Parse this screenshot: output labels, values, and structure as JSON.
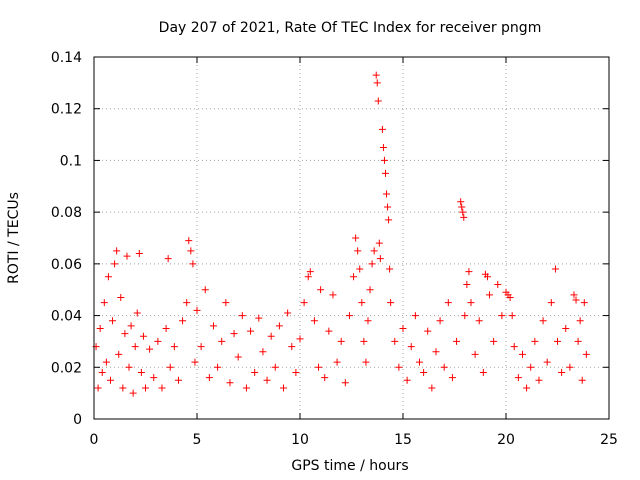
{
  "chart_data": {
    "type": "scatter",
    "title": "Day 207 of 2021, Rate Of TEC Index for receiver pngm",
    "xlabel": "GPS time / hours",
    "ylabel": "ROTI / TECUs",
    "xlim": [
      0,
      25
    ],
    "ylim": [
      0,
      0.14
    ],
    "xticks": [
      0,
      5,
      10,
      15,
      20,
      25
    ],
    "xtick_labels": [
      "0",
      "5",
      "10",
      "15",
      "20",
      "25"
    ],
    "yticks": [
      0,
      0.02,
      0.04,
      0.06,
      0.08,
      0.1,
      0.12,
      0.14
    ],
    "ytick_labels": [
      "0",
      "0.02",
      "0.04",
      "0.06",
      "0.08",
      "0.1",
      "0.12",
      "0.14"
    ],
    "grid": true,
    "marker": "plus",
    "color": "#ff0000",
    "series": [
      {
        "name": "ROTI",
        "points": [
          [
            0.1,
            0.028
          ],
          [
            0.2,
            0.012
          ],
          [
            0.3,
            0.035
          ],
          [
            0.4,
            0.018
          ],
          [
            0.5,
            0.045
          ],
          [
            0.6,
            0.022
          ],
          [
            0.7,
            0.055
          ],
          [
            0.8,
            0.015
          ],
          [
            0.9,
            0.038
          ],
          [
            1.0,
            0.06
          ],
          [
            1.1,
            0.065
          ],
          [
            1.2,
            0.025
          ],
          [
            1.3,
            0.047
          ],
          [
            1.4,
            0.012
          ],
          [
            1.5,
            0.033
          ],
          [
            1.6,
            0.063
          ],
          [
            1.7,
            0.02
          ],
          [
            1.8,
            0.036
          ],
          [
            1.9,
            0.01
          ],
          [
            2.0,
            0.028
          ],
          [
            2.1,
            0.041
          ],
          [
            2.2,
            0.064
          ],
          [
            2.3,
            0.018
          ],
          [
            2.4,
            0.032
          ],
          [
            2.5,
            0.012
          ],
          [
            2.7,
            0.027
          ],
          [
            2.9,
            0.016
          ],
          [
            3.1,
            0.03
          ],
          [
            3.3,
            0.012
          ],
          [
            3.5,
            0.035
          ],
          [
            3.6,
            0.062
          ],
          [
            3.7,
            0.02
          ],
          [
            3.9,
            0.028
          ],
          [
            4.1,
            0.015
          ],
          [
            4.3,
            0.038
          ],
          [
            4.5,
            0.045
          ],
          [
            4.6,
            0.069
          ],
          [
            4.7,
            0.065
          ],
          [
            4.8,
            0.06
          ],
          [
            4.9,
            0.022
          ],
          [
            5.0,
            0.042
          ],
          [
            5.2,
            0.028
          ],
          [
            5.4,
            0.05
          ],
          [
            5.6,
            0.016
          ],
          [
            5.8,
            0.036
          ],
          [
            6.0,
            0.02
          ],
          [
            6.2,
            0.03
          ],
          [
            6.4,
            0.045
          ],
          [
            6.6,
            0.014
          ],
          [
            6.8,
            0.033
          ],
          [
            7.0,
            0.024
          ],
          [
            7.2,
            0.04
          ],
          [
            7.4,
            0.012
          ],
          [
            7.6,
            0.034
          ],
          [
            7.8,
            0.018
          ],
          [
            8.0,
            0.039
          ],
          [
            8.2,
            0.026
          ],
          [
            8.4,
            0.015
          ],
          [
            8.6,
            0.032
          ],
          [
            8.8,
            0.02
          ],
          [
            9.0,
            0.036
          ],
          [
            9.2,
            0.012
          ],
          [
            9.4,
            0.041
          ],
          [
            9.6,
            0.028
          ],
          [
            9.8,
            0.018
          ],
          [
            10.0,
            0.031
          ],
          [
            10.2,
            0.045
          ],
          [
            10.4,
            0.055
          ],
          [
            10.5,
            0.057
          ],
          [
            10.7,
            0.038
          ],
          [
            10.9,
            0.02
          ],
          [
            11.0,
            0.05
          ],
          [
            11.2,
            0.016
          ],
          [
            11.4,
            0.034
          ],
          [
            11.6,
            0.048
          ],
          [
            11.8,
            0.022
          ],
          [
            12.0,
            0.03
          ],
          [
            12.2,
            0.014
          ],
          [
            12.4,
            0.04
          ],
          [
            12.6,
            0.055
          ],
          [
            12.7,
            0.07
          ],
          [
            12.8,
            0.065
          ],
          [
            12.9,
            0.058
          ],
          [
            13.0,
            0.045
          ],
          [
            13.1,
            0.03
          ],
          [
            13.2,
            0.022
          ],
          [
            13.3,
            0.038
          ],
          [
            13.4,
            0.05
          ],
          [
            13.5,
            0.06
          ],
          [
            13.6,
            0.065
          ],
          [
            13.7,
            0.133
          ],
          [
            13.75,
            0.13
          ],
          [
            13.8,
            0.123
          ],
          [
            13.85,
            0.068
          ],
          [
            13.9,
            0.062
          ],
          [
            14.0,
            0.112
          ],
          [
            14.05,
            0.105
          ],
          [
            14.1,
            0.1
          ],
          [
            14.15,
            0.095
          ],
          [
            14.2,
            0.087
          ],
          [
            14.25,
            0.082
          ],
          [
            14.3,
            0.077
          ],
          [
            14.35,
            0.058
          ],
          [
            14.4,
            0.045
          ],
          [
            14.6,
            0.03
          ],
          [
            14.8,
            0.02
          ],
          [
            15.0,
            0.035
          ],
          [
            15.2,
            0.015
          ],
          [
            15.4,
            0.028
          ],
          [
            15.6,
            0.04
          ],
          [
            15.8,
            0.022
          ],
          [
            16.0,
            0.018
          ],
          [
            16.2,
            0.034
          ],
          [
            16.4,
            0.012
          ],
          [
            16.6,
            0.026
          ],
          [
            16.8,
            0.038
          ],
          [
            17.0,
            0.02
          ],
          [
            17.2,
            0.045
          ],
          [
            17.4,
            0.016
          ],
          [
            17.6,
            0.03
          ],
          [
            17.8,
            0.084
          ],
          [
            17.85,
            0.082
          ],
          [
            17.9,
            0.08
          ],
          [
            17.95,
            0.078
          ],
          [
            18.0,
            0.04
          ],
          [
            18.1,
            0.052
          ],
          [
            18.2,
            0.057
          ],
          [
            18.3,
            0.045
          ],
          [
            18.5,
            0.025
          ],
          [
            18.7,
            0.038
          ],
          [
            18.9,
            0.018
          ],
          [
            19.0,
            0.056
          ],
          [
            19.1,
            0.055
          ],
          [
            19.2,
            0.048
          ],
          [
            19.4,
            0.03
          ],
          [
            19.6,
            0.052
          ],
          [
            19.8,
            0.04
          ],
          [
            20.0,
            0.049
          ],
          [
            20.1,
            0.048
          ],
          [
            20.2,
            0.047
          ],
          [
            20.3,
            0.04
          ],
          [
            20.4,
            0.028
          ],
          [
            20.6,
            0.016
          ],
          [
            20.8,
            0.025
          ],
          [
            21.0,
            0.012
          ],
          [
            21.2,
            0.02
          ],
          [
            21.4,
            0.03
          ],
          [
            21.6,
            0.015
          ],
          [
            21.8,
            0.038
          ],
          [
            22.0,
            0.022
          ],
          [
            22.2,
            0.045
          ],
          [
            22.4,
            0.058
          ],
          [
            22.5,
            0.03
          ],
          [
            22.7,
            0.018
          ],
          [
            22.9,
            0.035
          ],
          [
            23.1,
            0.02
          ],
          [
            23.3,
            0.048
          ],
          [
            23.4,
            0.046
          ],
          [
            23.5,
            0.03
          ],
          [
            23.6,
            0.038
          ],
          [
            23.7,
            0.015
          ],
          [
            23.8,
            0.045
          ],
          [
            23.9,
            0.025
          ]
        ]
      }
    ]
  }
}
